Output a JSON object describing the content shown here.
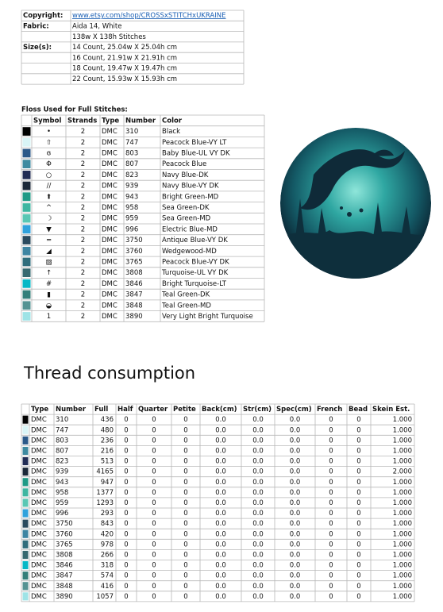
{
  "info": {
    "rows": [
      {
        "label": "Copyright:",
        "value": "www.etsy.com/shop/CROSSxSTITCHxUKRAINE"
      },
      {
        "label": "Fabric:",
        "value": "Aida 14, White"
      },
      {
        "value": "138w X 138h Stitches"
      },
      {
        "label": "Size(s):",
        "value": "14 Count,   25.04w X 25.04h cm"
      },
      {
        "value": "16 Count,   21.91w X 21.91h cm"
      },
      {
        "value": "18 Count,   19.47w X 19.47h cm"
      },
      {
        "value": "22 Count,   15.93w X 15.93h cm"
      }
    ]
  },
  "floss": {
    "title": "Floss Used for Full Stitches:",
    "columns": [
      "Symbol",
      "Strands",
      "Type",
      "Number",
      "Color"
    ],
    "rows": [
      {
        "color": "#000000",
        "cells": [
          "•",
          "2",
          "DMC",
          "310",
          "Black"
        ]
      },
      {
        "color": "#d9f4f6",
        "cells": [
          "⇧",
          "2",
          "DMC",
          "747",
          "Peacock Blue-VY LT"
        ]
      },
      {
        "color": "#2c5989",
        "cells": [
          "ɞ",
          "2",
          "DMC",
          "803",
          "Baby Blue-UL VY DK"
        ]
      },
      {
        "color": "#3e8aa0",
        "cells": [
          "Φ",
          "2",
          "DMC",
          "807",
          "Peacock Blue"
        ]
      },
      {
        "color": "#212c55",
        "cells": [
          "○",
          "2",
          "DMC",
          "823",
          "Navy Blue-DK"
        ]
      },
      {
        "color": "#1b2838",
        "cells": [
          "//",
          "2",
          "DMC",
          "939",
          "Navy Blue-VY DK"
        ]
      },
      {
        "color": "#1f9a86",
        "cells": [
          "⬆",
          "2",
          "DMC",
          "943",
          "Bright Green-MD"
        ]
      },
      {
        "color": "#3eb6a1",
        "cells": [
          "^",
          "2",
          "DMC",
          "958",
          "Sea Green-DK"
        ]
      },
      {
        "color": "#59c7b4",
        "cells": [
          "☽",
          "2",
          "DMC",
          "959",
          "Sea Green-MD"
        ]
      },
      {
        "color": "#30a2dc",
        "cells": [
          "▼",
          "2",
          "DMC",
          "996",
          "Electric Blue-MD"
        ]
      },
      {
        "color": "#2a4a5e",
        "cells": [
          "═",
          "2",
          "DMC",
          "3750",
          "Antique Blue-VY DK"
        ]
      },
      {
        "color": "#3e85a2",
        "cells": [
          "◢",
          "2",
          "DMC",
          "3760",
          "Wedgewood-MD"
        ]
      },
      {
        "color": "#2f6d7c",
        "cells": [
          "▨",
          "2",
          "DMC",
          "3765",
          "Peacock Blue-VY DK"
        ]
      },
      {
        "color": "#366970",
        "cells": [
          "↑",
          "2",
          "DMC",
          "3808",
          "Turquoise-UL VY DK"
        ]
      },
      {
        "color": "#06b8c6",
        "cells": [
          "#",
          "2",
          "DMC",
          "3846",
          "Bright Turquoise-LT"
        ]
      },
      {
        "color": "#347f7a",
        "cells": [
          "▮",
          "2",
          "DMC",
          "3847",
          "Teal Green-DK"
        ]
      },
      {
        "color": "#559393",
        "cells": [
          "◒",
          "2",
          "DMC",
          "3848",
          "Teal Green-MD"
        ]
      },
      {
        "color": "#9ee3e6",
        "cells": [
          "1",
          "2",
          "DMC",
          "3890",
          "Very Light Bright Turquoise"
        ]
      }
    ]
  },
  "consumption": {
    "title": "Thread consumption",
    "columns": [
      "Type",
      "Number",
      "Full",
      "Half",
      "Quarter",
      "Petite",
      "Back(cm)",
      "Str(cm)",
      "Spec(cm)",
      "French",
      "Bead",
      "Skein Est."
    ],
    "rows": [
      {
        "color": "#000000",
        "cells": [
          "DMC",
          "310",
          "436",
          "0",
          "0",
          "0",
          "0.0",
          "0.0",
          "0.0",
          "0",
          "0",
          "1.000"
        ]
      },
      {
        "color": "#d9f4f6",
        "cells": [
          "DMC",
          "747",
          "480",
          "0",
          "0",
          "0",
          "0.0",
          "0.0",
          "0.0",
          "0",
          "0",
          "1.000"
        ]
      },
      {
        "color": "#2c5989",
        "cells": [
          "DMC",
          "803",
          "236",
          "0",
          "0",
          "0",
          "0.0",
          "0.0",
          "0.0",
          "0",
          "0",
          "1.000"
        ]
      },
      {
        "color": "#3e8aa0",
        "cells": [
          "DMC",
          "807",
          "216",
          "0",
          "0",
          "0",
          "0.0",
          "0.0",
          "0.0",
          "0",
          "0",
          "1.000"
        ]
      },
      {
        "color": "#212c55",
        "cells": [
          "DMC",
          "823",
          "513",
          "0",
          "0",
          "0",
          "0.0",
          "0.0",
          "0.0",
          "0",
          "0",
          "1.000"
        ]
      },
      {
        "color": "#1b2838",
        "cells": [
          "DMC",
          "939",
          "4165",
          "0",
          "0",
          "0",
          "0.0",
          "0.0",
          "0.0",
          "0",
          "0",
          "2.000"
        ]
      },
      {
        "color": "#1f9a86",
        "cells": [
          "DMC",
          "943",
          "947",
          "0",
          "0",
          "0",
          "0.0",
          "0.0",
          "0.0",
          "0",
          "0",
          "1.000"
        ]
      },
      {
        "color": "#3eb6a1",
        "cells": [
          "DMC",
          "958",
          "1377",
          "0",
          "0",
          "0",
          "0.0",
          "0.0",
          "0.0",
          "0",
          "0",
          "1.000"
        ]
      },
      {
        "color": "#59c7b4",
        "cells": [
          "DMC",
          "959",
          "1293",
          "0",
          "0",
          "0",
          "0.0",
          "0.0",
          "0.0",
          "0",
          "0",
          "1.000"
        ]
      },
      {
        "color": "#30a2dc",
        "cells": [
          "DMC",
          "996",
          "293",
          "0",
          "0",
          "0",
          "0.0",
          "0.0",
          "0.0",
          "0",
          "0",
          "1.000"
        ]
      },
      {
        "color": "#2a4a5e",
        "cells": [
          "DMC",
          "3750",
          "843",
          "0",
          "0",
          "0",
          "0.0",
          "0.0",
          "0.0",
          "0",
          "0",
          "1.000"
        ]
      },
      {
        "color": "#3e85a2",
        "cells": [
          "DMC",
          "3760",
          "420",
          "0",
          "0",
          "0",
          "0.0",
          "0.0",
          "0.0",
          "0",
          "0",
          "1.000"
        ]
      },
      {
        "color": "#2f6d7c",
        "cells": [
          "DMC",
          "3765",
          "978",
          "0",
          "0",
          "0",
          "0.0",
          "0.0",
          "0.0",
          "0",
          "0",
          "1.000"
        ]
      },
      {
        "color": "#366970",
        "cells": [
          "DMC",
          "3808",
          "266",
          "0",
          "0",
          "0",
          "0.0",
          "0.0",
          "0.0",
          "0",
          "0",
          "1.000"
        ]
      },
      {
        "color": "#06b8c6",
        "cells": [
          "DMC",
          "3846",
          "318",
          "0",
          "0",
          "0",
          "0.0",
          "0.0",
          "0.0",
          "0",
          "0",
          "1.000"
        ]
      },
      {
        "color": "#347f7a",
        "cells": [
          "DMC",
          "3847",
          "574",
          "0",
          "0",
          "0",
          "0.0",
          "0.0",
          "0.0",
          "0",
          "0",
          "1.000"
        ]
      },
      {
        "color": "#559393",
        "cells": [
          "DMC",
          "3848",
          "416",
          "0",
          "0",
          "0",
          "0.0",
          "0.0",
          "0.0",
          "0",
          "0",
          "1.000"
        ]
      },
      {
        "color": "#9ee3e6",
        "cells": [
          "DMC",
          "3890",
          "1057",
          "0",
          "0",
          "0",
          "0.0",
          "0.0",
          "0.0",
          "0",
          "0",
          "1.000"
        ]
      }
    ]
  }
}
